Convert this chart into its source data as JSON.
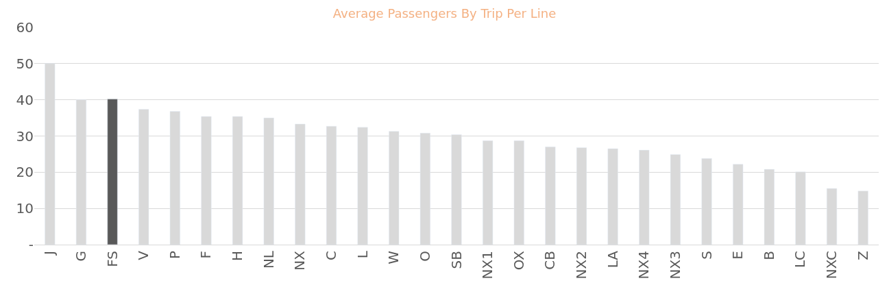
{
  "chart_data": {
    "type": "bar",
    "title": "Average Passengers By Trip Per Line",
    "categories": [
      "J",
      "G",
      "FS",
      "V",
      "P",
      "F",
      "H",
      "NL",
      "NX",
      "C",
      "L",
      "W",
      "O",
      "SB",
      "NX1",
      "OX",
      "CB",
      "NX2",
      "LA",
      "NX4",
      "NX3",
      "S",
      "E",
      "B",
      "LC",
      "NXC",
      "Z"
    ],
    "values": [
      50,
      40,
      40.2,
      37.4,
      36.8,
      35.4,
      35.4,
      35,
      33.3,
      32.7,
      32.4,
      31.3,
      30.8,
      30.4,
      28.7,
      28.7,
      27,
      26.8,
      26.5,
      26.1,
      24.9,
      23.8,
      22.2,
      20.8,
      20.1,
      15.5,
      14.8
    ],
    "colors": [
      "#d9d9d9",
      "#d9d9d9",
      "#595959",
      "#d9d9d9",
      "#d9d9d9",
      "#d9d9d9",
      "#d9d9d9",
      "#d9d9d9",
      "#d9d9d9",
      "#d9d9d9",
      "#d9d9d9",
      "#d9d9d9",
      "#d9d9d9",
      "#d9d9d9",
      "#d9d9d9",
      "#d9d9d9",
      "#d9d9d9",
      "#d9d9d9",
      "#d9d9d9",
      "#d9d9d9",
      "#d9d9d9",
      "#d9d9d9",
      "#d9d9d9",
      "#d9d9d9",
      "#d9d9d9",
      "#d9d9d9",
      "#d9d9d9"
    ],
    "ylim": [
      0,
      60
    ],
    "yticks": [
      {
        "value": 0,
        "label": "-"
      },
      10,
      20,
      30,
      40,
      50,
      60
    ],
    "grid": "y"
  }
}
